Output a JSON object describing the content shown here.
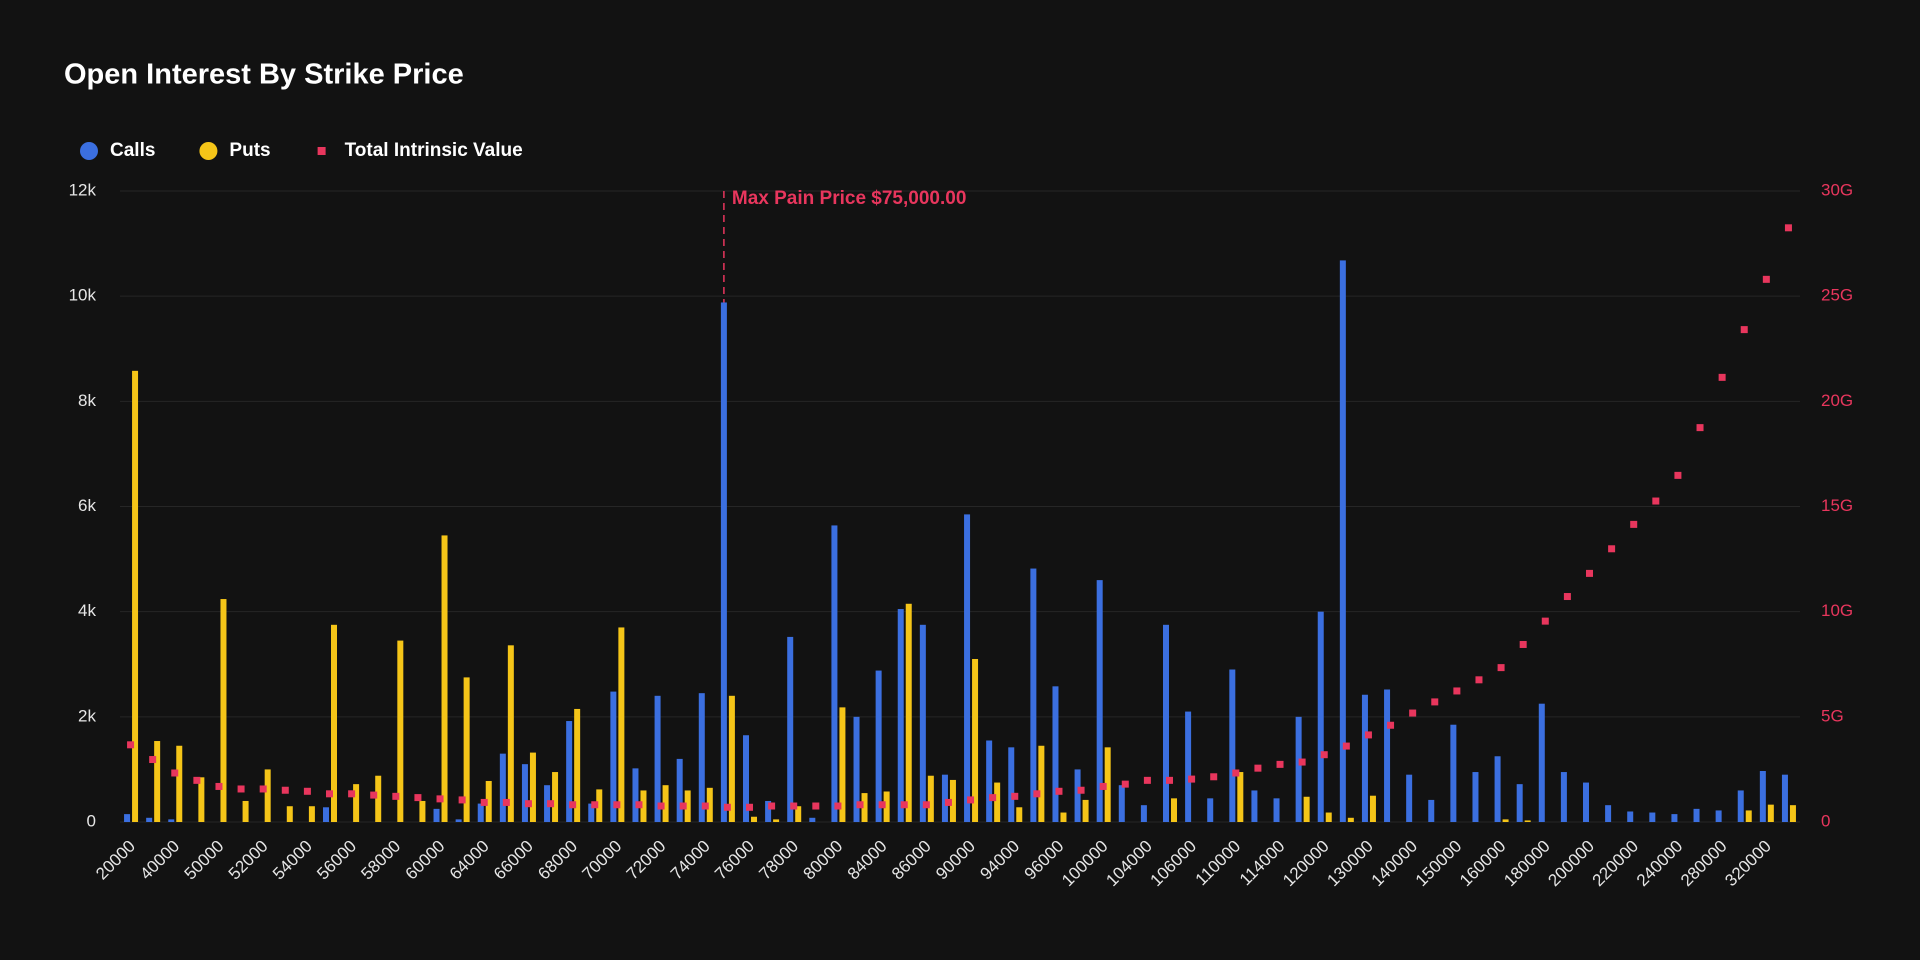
{
  "chart_data": {
    "type": "bar",
    "title": "Open Interest By Strike Price",
    "categories": [
      20000,
      null,
      40000,
      null,
      50000,
      null,
      52000,
      null,
      54000,
      null,
      56000,
      null,
      58000,
      null,
      60000,
      null,
      64000,
      null,
      66000,
      null,
      68000,
      null,
      70000,
      null,
      72000,
      null,
      74000,
      null,
      76000,
      null,
      78000,
      null,
      80000,
      null,
      84000,
      null,
      86000,
      null,
      90000,
      null,
      94000,
      null,
      96000,
      null,
      100000,
      null,
      104000,
      null,
      106000,
      null,
      110000,
      null,
      114000,
      null,
      120000,
      null,
      130000,
      null,
      140000,
      null,
      150000,
      null,
      160000,
      null,
      180000,
      null,
      200000,
      null,
      220000,
      null,
      240000,
      null,
      280000,
      null,
      320000,
      null
    ],
    "series": [
      {
        "name": "Calls",
        "color": "#3b6fe0",
        "marker": "circle",
        "type": "bar",
        "axis": "y",
        "values": [
          150,
          80,
          50,
          0,
          0,
          0,
          0,
          0,
          0,
          280,
          0,
          0,
          0,
          0,
          250,
          50,
          350,
          1300,
          1100,
          700,
          1920,
          350,
          2480,
          1020,
          2400,
          1200,
          2450,
          9880,
          1650,
          400,
          3520,
          80,
          5640,
          2000,
          2880,
          4050,
          3750,
          900,
          5850,
          1550,
          1420,
          4820,
          2580,
          1000,
          4600,
          700,
          320,
          3750,
          2100,
          450,
          2900,
          600,
          450,
          2000,
          4000,
          10680,
          2420,
          2520,
          900,
          420,
          1850,
          950,
          1250,
          720,
          2250,
          950,
          750,
          320,
          200,
          180,
          150,
          250,
          220,
          600,
          970,
          900
        ]
      },
      {
        "name": "Puts",
        "color": "#f5c518",
        "marker": "circle",
        "type": "bar",
        "axis": "y",
        "values": [
          8580,
          1540,
          1450,
          850,
          4240,
          400,
          1000,
          300,
          300,
          3750,
          720,
          880,
          3450,
          400,
          5450,
          2750,
          780,
          3360,
          1320,
          950,
          2150,
          620,
          3700,
          600,
          700,
          600,
          650,
          2400,
          100,
          50,
          300,
          0,
          2180,
          550,
          580,
          4150,
          880,
          800,
          3100,
          750,
          280,
          1450,
          180,
          420,
          1420,
          0,
          0,
          450,
          0,
          0,
          950,
          0,
          0,
          480,
          180,
          80,
          500,
          0,
          0,
          0,
          0,
          0,
          50,
          30,
          0,
          0,
          0,
          0,
          0,
          0,
          0,
          0,
          0,
          220,
          330,
          320
        ]
      },
      {
        "name": "Total Intrinsic Value",
        "color": "#e8365d",
        "marker": "square",
        "type": "scatter",
        "axis": "y2",
        "values": [
          3670000000,
          2970000000,
          2330000000,
          1980000000,
          1690000000,
          1570000000,
          1570000000,
          1510000000,
          1460000000,
          1340000000,
          1340000000,
          1280000000,
          1220000000,
          1160000000,
          1100000000,
          1050000000,
          930000000,
          930000000,
          870000000,
          870000000,
          820000000,
          820000000,
          820000000,
          820000000,
          760000000,
          760000000,
          760000000,
          700000000,
          700000000,
          760000000,
          760000000,
          760000000,
          760000000,
          820000000,
          820000000,
          820000000,
          820000000,
          930000000,
          1050000000,
          1160000000,
          1220000000,
          1340000000,
          1460000000,
          1510000000,
          1690000000,
          1800000000,
          1980000000,
          1980000000,
          2040000000,
          2150000000,
          2330000000,
          2560000000,
          2740000000,
          2850000000,
          3200000000,
          3610000000,
          4140000000,
          4600000000,
          5180000000,
          5710000000,
          6230000000,
          6760000000,
          7340000000,
          8440000000,
          9550000000,
          10720000000,
          11820000000,
          12990000000,
          14150000000,
          15260000000,
          16480000000,
          18750000000,
          21140000000,
          23410000000,
          25800000000,
          28250000000
        ]
      }
    ],
    "ylim": [
      0,
      12000
    ],
    "yticks": [
      0,
      {
        "value": 2000,
        "label": "2k"
      },
      {
        "value": 4000,
        "label": "4k"
      },
      {
        "value": 6000,
        "label": "6k"
      },
      {
        "value": 8000,
        "label": "8k"
      },
      {
        "value": 10000,
        "label": "10k"
      },
      {
        "value": 12000,
        "label": "12k"
      }
    ],
    "y2lim": [
      0,
      30000000000
    ],
    "y2ticks": [
      0,
      {
        "value": 5000000000,
        "label": "5G"
      },
      {
        "value": 10000000000,
        "label": "10G"
      },
      {
        "value": 15000000000,
        "label": "15G"
      },
      {
        "value": 20000000000,
        "label": "20G"
      },
      {
        "value": 25000000000,
        "label": "25G"
      },
      {
        "value": 30000000000,
        "label": "30G"
      }
    ],
    "y2_color": "#e8365d",
    "grid": true,
    "annotations": [
      {
        "text": "Max Pain Price $75,000.00",
        "x": 75000,
        "color": "#e8365d"
      }
    ]
  }
}
